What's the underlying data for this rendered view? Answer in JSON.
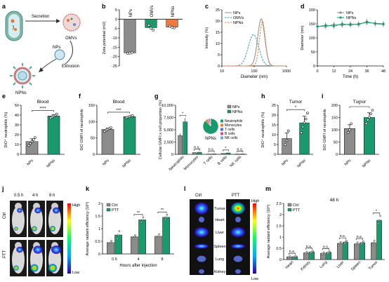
{
  "colors": {
    "grey": "#8c8c8c",
    "green": "#1a9a6c",
    "orange": "#f07a3c",
    "teal": "#2aa0a0",
    "dark": "#333333"
  },
  "panel_a": {
    "secretion": "Secretion",
    "omvs": "OMVs",
    "nps": "NPs",
    "extrusion": "Extrusion",
    "npns": "NPNs"
  },
  "panel_j": {
    "times": [
      "0.5 h",
      "4 h",
      "8 h"
    ],
    "rows": [
      "Ctrl",
      "PTT"
    ],
    "high": "High",
    "low": "Low"
  },
  "panel_l": {
    "cols": [
      "Ctrl",
      "PTT"
    ],
    "organs": [
      "Tumor",
      "Heart",
      "Liver",
      "Spleen",
      "Lung",
      "Kidney"
    ],
    "high": "High",
    "low": "Low"
  },
  "chart_data": [
    {
      "id": "b",
      "type": "bar",
      "categories": [
        "NPs",
        "OMVs",
        "NPNs"
      ],
      "values": [
        -18,
        -4.5,
        -4.2
      ],
      "points": [
        [
          -18.3,
          -18.1,
          -17.8
        ],
        [
          -3.2,
          -4.8,
          -5.8
        ],
        [
          -3.8,
          -4.3,
          -4.6
        ]
      ],
      "colors": [
        "#8c8c8c",
        "#1a9a6c",
        "#f07a3c"
      ],
      "ylabel": "Zeta potential (mV)",
      "ylim": [
        -25,
        5
      ],
      "yticks": [
        -25,
        -20,
        -15,
        -10,
        -5,
        0,
        5
      ]
    },
    {
      "id": "c",
      "type": "line",
      "xlabel": "Diameter (nm)",
      "ylabel": "Intensity (%)",
      "xscale": "log",
      "xlim": [
        10,
        1000
      ],
      "xticks": [
        10,
        100,
        1000
      ],
      "ylim": [
        0,
        25
      ],
      "yticks": [
        0,
        5,
        10,
        15,
        20,
        25
      ],
      "legend": [
        "NPs",
        "OMVs",
        "NPNs"
      ],
      "series": [
        {
          "name": "NPs",
          "color": "#8c8c8c",
          "style": "solid",
          "center": 165,
          "width": 0.11,
          "peak": 21
        },
        {
          "name": "OMVs",
          "color": "#2aa0a0",
          "style": "dashed",
          "center": 95,
          "width": 0.16,
          "peak": 14
        },
        {
          "name": "NPNs",
          "color": "#f07a3c",
          "style": "dashed",
          "center": 180,
          "width": 0.09,
          "peak": 20
        }
      ]
    },
    {
      "id": "d",
      "type": "line",
      "xlabel": "Time (h)",
      "ylabel": "Diameter (nm)",
      "xlim": [
        0,
        48
      ],
      "xticks": [
        0,
        12,
        24,
        36,
        48
      ],
      "ylim": [
        0,
        200
      ],
      "yticks": [
        0,
        50,
        100,
        150,
        200
      ],
      "legend": [
        "NPs",
        "NPNs"
      ],
      "x": [
        0,
        6,
        12,
        18,
        24,
        30,
        36,
        42,
        48
      ],
      "series": [
        {
          "name": "NPs",
          "color": "#8c8c8c",
          "values": [
            142,
            140,
            148,
            145,
            150,
            147,
            158,
            150,
            148
          ]
        },
        {
          "name": "NPNs",
          "color": "#1a9a6c",
          "values": [
            140,
            145,
            142,
            150,
            146,
            150,
            155,
            152,
            150
          ]
        }
      ]
    },
    {
      "id": "e",
      "type": "bar",
      "title": "Blood",
      "categories": [
        "NPs",
        "NPNs"
      ],
      "values": [
        13,
        39
      ],
      "points": [
        [
          9,
          11,
          13,
          15,
          17
        ],
        [
          37,
          38,
          39,
          40,
          41
        ]
      ],
      "colors": [
        "#8c8c8c",
        "#1a9a6c"
      ],
      "ylabel": "DiO⁺ neutrophils (%)",
      "ylim": [
        0,
        50
      ],
      "yticks": [
        0,
        10,
        20,
        30,
        40,
        50
      ],
      "sig": "****"
    },
    {
      "id": "f",
      "type": "bar",
      "title": "Blood",
      "categories": [
        "NPs",
        "NPNs"
      ],
      "values": [
        76,
        115
      ],
      "points": [
        [
          70,
          74,
          76,
          79,
          81
        ],
        [
          112,
          114,
          115,
          117,
          118
        ]
      ],
      "colors": [
        "#8c8c8c",
        "#1a9a6c"
      ],
      "ylabel": "DiO GMFI of neutrophils",
      "ylim": [
        0,
        150
      ],
      "yticks": [
        0,
        50,
        100,
        150
      ],
      "sig": "***"
    },
    {
      "id": "g",
      "type": "bar",
      "categories": [
        "Neutrophils",
        "Monocytes",
        "T cells",
        "B cells",
        "NK cells"
      ],
      "series": [
        {
          "name": "NPs",
          "color": "#8c8c8c",
          "values": [
            3800,
            350,
            60,
            180,
            60
          ]
        },
        {
          "name": "NPNs",
          "color": "#1a9a6c",
          "values": [
            6600,
            420,
            80,
            280,
            70
          ]
        }
      ],
      "ylabel": "Cellular GMFI x cell proportion (%)",
      "ylim": [
        0,
        10000
      ],
      "yticks": [
        0,
        2500,
        5000,
        7500,
        10000
      ],
      "sig": [
        "*",
        "n.s.",
        "n.s.",
        "*",
        "n.s."
      ],
      "pie": {
        "title": "NPNs",
        "legend": [
          "Neutrophils",
          "Monocytes",
          "T cells",
          "B cells",
          "NK cells"
        ],
        "colors": [
          "#1a9a6c",
          "#f07a3c",
          "#5a6acf",
          "#d04a9a",
          "#66aadd"
        ],
        "values": [
          88,
          6,
          2,
          3,
          1
        ]
      }
    },
    {
      "id": "h",
      "type": "bar",
      "title": "Tumor",
      "categories": [
        "NPs",
        "NPNs"
      ],
      "values": [
        8,
        16
      ],
      "points": [
        [
          5,
          7,
          12
        ],
        [
          11,
          14,
          16,
          18,
          21
        ]
      ],
      "colors": [
        "#8c8c8c",
        "#1a9a6c"
      ],
      "ylabel": "DiO⁺ neutrophils (%)",
      "ylim": [
        0,
        25
      ],
      "yticks": [
        0,
        5,
        10,
        15,
        20,
        25
      ],
      "sig": "*"
    },
    {
      "id": "i",
      "type": "bar",
      "title": "Tumor",
      "categories": [
        "NPs",
        "NPNs"
      ],
      "values": [
        105,
        150
      ],
      "points": [
        [
          88,
          100,
          125
        ],
        [
          125,
          140,
          150,
          165,
          180
        ]
      ],
      "colors": [
        "#8c8c8c",
        "#1a9a6c"
      ],
      "ylabel": "DiO GMFI of neutrophils",
      "ylim": [
        0,
        200
      ],
      "yticks": [
        0,
        50,
        100,
        150,
        200
      ],
      "sig": "*"
    },
    {
      "id": "k",
      "type": "bar",
      "categories": [
        "0.5",
        "4",
        "8"
      ],
      "series": [
        {
          "name": "Ctrl",
          "color": "#8c8c8c",
          "values": [
            0.45,
            0.68,
            0.7
          ],
          "points": [
            [
              0.38,
              0.45,
              0.52
            ],
            [
              0.62,
              0.68,
              0.74
            ],
            [
              0.62,
              0.7,
              0.78
            ]
          ]
        },
        {
          "name": "PTT",
          "color": "#1a9a6c",
          "values": [
            0.75,
            1.35,
            1.45
          ],
          "points": [
            [
              0.6,
              0.75,
              0.9
            ],
            [
              1.25,
              1.35,
              1.45
            ],
            [
              1.35,
              1.45,
              1.55
            ]
          ]
        }
      ],
      "xlabel": "Hours after injection",
      "ylabel": "Average radiant efficiency (10⁸)",
      "ylim": [
        0,
        2
      ],
      "yticks": [
        0,
        0.5,
        1,
        1.5,
        2
      ],
      "sig": [
        "",
        "**",
        "**"
      ]
    },
    {
      "id": "m",
      "type": "bar",
      "title": "48 h",
      "categories": [
        "Heart",
        "Kidney",
        "Lung",
        "Liver",
        "Spleen",
        "Tumor"
      ],
      "series": [
        {
          "name": "Ctrl",
          "color": "#8c8c8c",
          "values": [
            0.12,
            0.3,
            0.28,
            0.72,
            0.7,
            0.75
          ],
          "points": [
            [
              0.1,
              0.12,
              0.14
            ],
            [
              0.26,
              0.3,
              0.34
            ],
            [
              0.24,
              0.28,
              0.32
            ],
            [
              0.66,
              0.72,
              0.78
            ],
            [
              0.64,
              0.7,
              0.76
            ],
            [
              0.66,
              0.75,
              0.84
            ]
          ]
        },
        {
          "name": "PTT",
          "color": "#1a9a6c",
          "values": [
            0.13,
            0.34,
            0.32,
            0.78,
            0.75,
            1.75
          ],
          "points": [
            [
              0.11,
              0.13,
              0.15
            ],
            [
              0.3,
              0.34,
              0.38
            ],
            [
              0.28,
              0.32,
              0.36
            ],
            [
              0.72,
              0.78,
              0.84
            ],
            [
              0.69,
              0.75,
              0.81
            ],
            [
              1.6,
              1.75,
              1.95
            ]
          ]
        }
      ],
      "ylabel": "Average radiant efficiency (10⁸)",
      "ylim": [
        0,
        2.5
      ],
      "yticks": [
        0,
        0.5,
        1,
        1.5,
        2,
        2.5
      ],
      "sig": [
        "n.s.",
        "n.s.",
        "n.s.",
        "n.s.",
        "n.s.",
        "*"
      ]
    }
  ]
}
